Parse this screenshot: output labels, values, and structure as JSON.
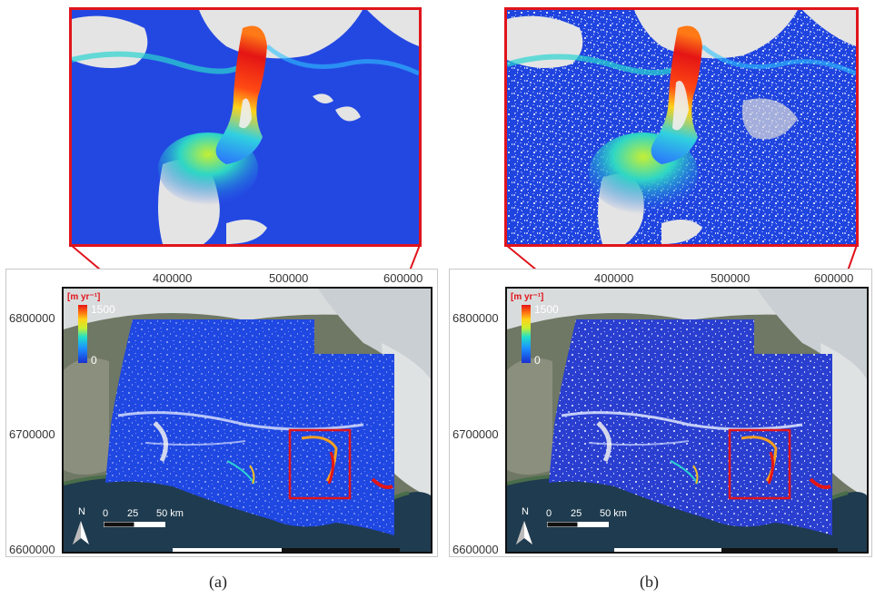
{
  "panels": [
    {
      "id": "a",
      "label": "(a)",
      "x_ticks": [
        "400000",
        "500000",
        "600000"
      ],
      "y_ticks": [
        "6800000",
        "6700000",
        "6600000"
      ],
      "colorbar": {
        "title": "[m yr⁻¹]",
        "max_label": "1500",
        "min_label": "0"
      },
      "scalebar": {
        "north": "N",
        "labels": [
          "0",
          "25",
          "50 km"
        ]
      }
    },
    {
      "id": "b",
      "label": "(b)",
      "x_ticks": [
        "400000",
        "500000",
        "600000"
      ],
      "y_ticks": [
        "6800000",
        "6700000",
        "6600000"
      ],
      "colorbar": {
        "title": "[m yr⁻¹]",
        "max_label": "1500",
        "min_label": "0"
      },
      "scalebar": {
        "north": "N",
        "labels": [
          "0",
          "25",
          "50 km"
        ]
      }
    }
  ],
  "colors": {
    "inset_border": "#e0141c",
    "velocity_low": "#1f3fd6",
    "velocity_high": "#e61a1a",
    "no_data": "#e2e2e2"
  }
}
